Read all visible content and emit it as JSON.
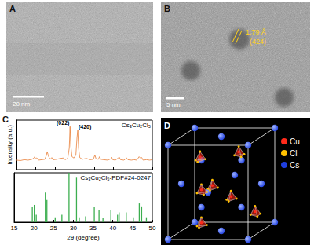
{
  "panels": {
    "A": {
      "label": "A",
      "scale_bar": "20 nm"
    },
    "B": {
      "label": "B",
      "scale_bar": "5 nm",
      "fringe": {
        "spacing": "1.79 Å",
        "plane": "(424)"
      }
    },
    "C": {
      "label": "C"
    },
    "D": {
      "label": "D",
      "legend": [
        {
          "label": "Cu",
          "color": "#ff2a1a"
        },
        {
          "label": "Cl",
          "color": "#ffc000"
        },
        {
          "label": "Cs",
          "color": "#1f3fe0"
        }
      ]
    }
  },
  "chart_data": [
    {
      "type": "line",
      "name": "Cs₃Cu₂Cl₅",
      "color": "#e8803a",
      "x": [
        15,
        16,
        17,
        18,
        19,
        19.5,
        19.7,
        19.9,
        20.2,
        20.4,
        20.7,
        21.5,
        22.3,
        22.7,
        22.9,
        23.1,
        23.3,
        23.7,
        24.1,
        24.5,
        25.4,
        26.3,
        27.1,
        27.5,
        28.2,
        28.6,
        28.8,
        29.0,
        29.3,
        29.8,
        30.3,
        30.6,
        30.8,
        31.0,
        31.3,
        32.0,
        33.0,
        34.0,
        34.8,
        35.2,
        35.5,
        36.1,
        36.4,
        36.7,
        37.5,
        38.5,
        39.3,
        39.5,
        39.8,
        40.5,
        41.2,
        41.5,
        41.8,
        42.7,
        43.4,
        43.7,
        44.6,
        45.3,
        46.0,
        46.6,
        46.9,
        47.3,
        47.6,
        48.5,
        49.3,
        50
      ],
      "values": [
        22,
        21,
        23,
        22,
        24,
        27,
        30,
        25,
        27,
        26,
        22,
        23,
        24,
        33,
        42,
        36,
        30,
        24,
        28,
        23,
        24,
        26,
        27,
        23,
        26,
        50,
        100,
        55,
        30,
        27,
        34,
        75,
        92,
        50,
        28,
        24,
        26,
        23,
        24,
        34,
        25,
        24,
        30,
        24,
        23,
        22,
        25,
        29,
        23,
        22,
        27,
        29,
        23,
        22,
        27,
        23,
        22,
        23,
        22,
        30,
        27,
        28,
        22,
        23,
        22,
        23
      ],
      "xlim": [
        15,
        50
      ],
      "xticks": [
        15,
        20,
        25,
        30,
        35,
        40,
        45,
        50
      ],
      "ylim": [
        0,
        115
      ],
      "ylabel": "Intensity (a.u.)",
      "tick_labels": false,
      "grid": false,
      "annotations": [
        {
          "text": "(022)",
          "x": 28.8,
          "y": 100
        },
        {
          "text": "(420)",
          "x": 30.8,
          "y": 92
        }
      ]
    },
    {
      "type": "bar",
      "name": "Cs₃Cu₂Cl₅-PDF#24-0247",
      "color": "#3cae4f",
      "x": [
        19.6,
        20.1,
        20.6,
        22.9,
        23.3,
        25.4,
        27.1,
        28.9,
        30.8,
        31.5,
        33.1,
        35.3,
        36.5,
        37.5,
        39.5,
        41.2,
        41.6,
        43.4,
        45.2,
        46.7,
        47.3,
        48.5
      ],
      "values": [
        30,
        35,
        15,
        60,
        45,
        10,
        15,
        100,
        90,
        10,
        12,
        30,
        25,
        8,
        25,
        15,
        20,
        20,
        10,
        38,
        32,
        10
      ],
      "xlim": [
        15,
        50
      ],
      "xticks": [
        15,
        20,
        25,
        30,
        35,
        40,
        45,
        50
      ],
      "ylim": [
        0,
        100
      ],
      "xlabel": "2θ (degree)",
      "tick_labels": "x",
      "grid": false
    }
  ]
}
